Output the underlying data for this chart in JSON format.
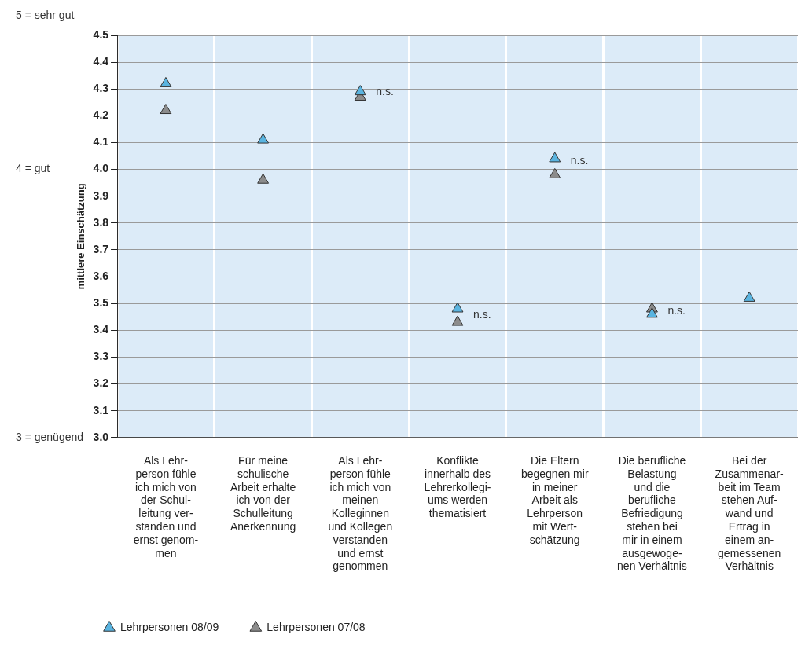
{
  "chart_data": {
    "type": "scatter",
    "ylabel": "mittlere Einschätzung",
    "categories": [
      "Als Lehr-\nperson fühle\nich mich von\nder Schul-\nleitung ver-\nstanden und\nernst genom-\nmen",
      "Für meine\nschulische\nArbeit erhalte\nich von der\nSchulleitung\nAnerkennung",
      "Als Lehr-\nperson fühle\nich mich von\nmeinen\nKolleginnen\nund Kollegen\nverstanden\nund ernst\ngenommen",
      "Konflikte\ninnerhalb des\nLehrerkollegi-\nums werden\nthematisiert",
      "Die Eltern\nbegegnen mir\nin meiner\nArbeit als\nLehrperson\nmit Wert-\nschätzung",
      "Die berufliche\nBelastung\nund die\nberufliche\nBefriedigung\nstehen bei\nmir in einem\nausgewoge-\nnen Verhältnis",
      "Bei der\nZusammenar-\nbeit im Team\nstehen Auf-\nwand und\nErtrag in\neinem an-\ngemessenen\nVerhältnis"
    ],
    "series": [
      {
        "name": "Lehrpersonen 08/09",
        "color": "#5ab4e0",
        "values": [
          4.32,
          4.11,
          4.29,
          3.48,
          4.04,
          3.46,
          3.52
        ]
      },
      {
        "name": "Lehrpersonen 07/08",
        "color": "#8c8c8c",
        "values": [
          4.22,
          3.96,
          4.27,
          3.43,
          3.98,
          3.48,
          null
        ]
      }
    ],
    "ylim": [
      3.0,
      4.5
    ],
    "yticks": [
      {
        "value": 3.0,
        "label": "3.0"
      },
      {
        "value": 3.1,
        "label": "3.1"
      },
      {
        "value": 3.2,
        "label": "3.2"
      },
      {
        "value": 3.3,
        "label": "3.3"
      },
      {
        "value": 3.4,
        "label": "3.4"
      },
      {
        "value": 3.5,
        "label": "3.5"
      },
      {
        "value": 3.6,
        "label": "3.6"
      },
      {
        "value": 3.7,
        "label": "3.7"
      },
      {
        "value": 3.8,
        "label": "3.8"
      },
      {
        "value": 3.9,
        "label": "3.9"
      },
      {
        "value": 4.0,
        "label": "4.0"
      },
      {
        "value": 4.1,
        "label": "4.1"
      },
      {
        "value": 4.2,
        "label": "4.2"
      },
      {
        "value": 4.3,
        "label": "4.3"
      },
      {
        "value": 4.4,
        "label": "4.4"
      },
      {
        "value": 4.5,
        "label": "4.5"
      }
    ],
    "annotations": [
      "5 = sehr gut",
      "4 = gut",
      "3 = genügend",
      {
        "text": "n.s.",
        "x": "Als Lehr-\nperson fühle\nich mich von\nmeinen\nKolleginnen\nund Kollegen\nverstanden\nund ernst\ngenommen",
        "y": 4.29
      },
      {
        "text": "n.s.",
        "x": "Konflikte\ninnerhalb des\nLehrerkollegi-\nums werden\nthematisiert",
        "y": 3.455
      },
      {
        "text": "n.s.",
        "x": "Die Eltern\nbegegnen mir\nin meiner\nArbeit als\nLehrperson\nmit Wert-\nschätzung",
        "y": 4.03
      },
      {
        "text": "n.s.",
        "x": "Die berufliche\nBelastung\nund die\nberufliche\nBefriedigung\nstehen bei\nmir in einem\nausgewoge-\nnen Verhältnis",
        "y": 3.47
      }
    ],
    "grid": true,
    "legend": "bottom left",
    "marker": "triangle"
  }
}
